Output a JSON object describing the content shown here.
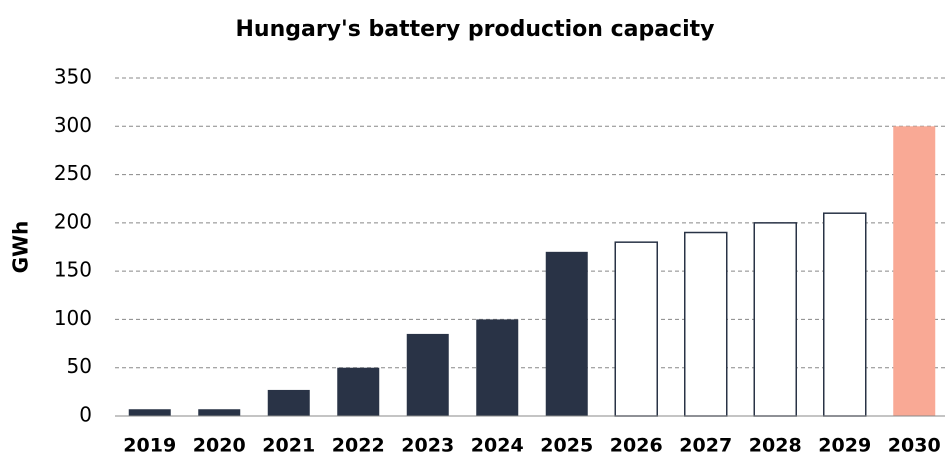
{
  "chart_data": {
    "type": "bar",
    "title": "Hungary's battery production capacity",
    "y_label": "GWh",
    "categories": [
      "2019",
      "2020",
      "2021",
      "2022",
      "2023",
      "2024",
      "2025",
      "2026",
      "2027",
      "2028",
      "2029",
      "2030"
    ],
    "values": [
      7,
      7,
      27,
      50,
      85,
      100,
      170,
      180,
      190,
      200,
      210,
      300
    ],
    "colors": [
      "#293346",
      "#293346",
      "#293346",
      "#293346",
      "#293346",
      "#293346",
      "#293346",
      "#ffffff",
      "#ffffff",
      "#ffffff",
      "#ffffff",
      "#f9a995"
    ],
    "outline_color": "#293346",
    "outlined": [
      false,
      false,
      false,
      false,
      false,
      false,
      false,
      true,
      true,
      true,
      true,
      false
    ],
    "ylim": [
      0,
      350
    ],
    "yticks": [
      0,
      50,
      100,
      150,
      200,
      250,
      300,
      350
    ],
    "grid": true
  }
}
